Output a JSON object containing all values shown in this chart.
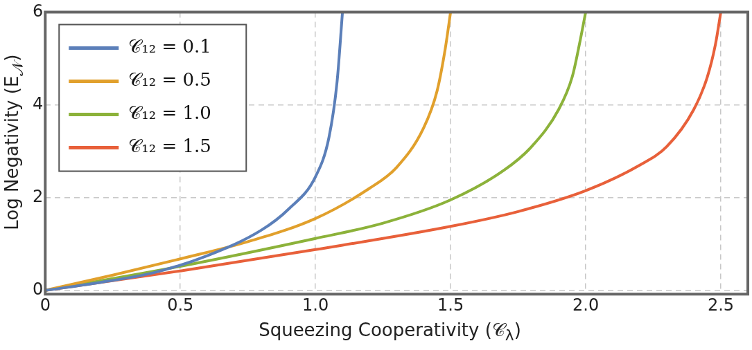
{
  "chart_data": {
    "type": "line",
    "xlabel": "Squeezing Cooperativity (𝒞$_{λ}$)",
    "ylabel": "Log Negativity (E$_{𝒩}$)",
    "xlim": [
      0,
      2.6
    ],
    "ylim": [
      -0.08,
      6
    ],
    "xticks": [
      0,
      0.5,
      {
        "value": 1,
        "label": "1.0"
      },
      1.5,
      {
        "value": 2,
        "label": "2.0"
      },
      2.5
    ],
    "yticks": [
      0,
      2,
      4,
      6
    ],
    "grid": true,
    "legend": "top left",
    "marker": "none",
    "line_style": "solid",
    "series": [
      {
        "name": "𝒞₁₂ = 0.1",
        "color": "#5b7fb9",
        "x": [
          0,
          0.2,
          0.4,
          0.6,
          0.8,
          0.9,
          1.0,
          1.05,
          1.08,
          1.1
        ],
        "values": [
          0,
          0.17,
          0.38,
          0.75,
          1.3,
          1.75,
          2.45,
          3.3,
          4.5,
          6
        ]
      },
      {
        "name": "𝒞₁₂ = 0.5",
        "color": "#e1a02c",
        "x": [
          0,
          0.25,
          0.5,
          0.75,
          1.0,
          1.2,
          1.3,
          1.4,
          1.45,
          1.48,
          1.5
        ],
        "values": [
          0,
          0.33,
          0.68,
          1.05,
          1.55,
          2.2,
          2.65,
          3.5,
          4.3,
          5.2,
          6
        ]
      },
      {
        "name": "𝒞₁₂ = 1.0",
        "color": "#8cb23a",
        "x": [
          0,
          0.5,
          1.0,
          1.25,
          1.5,
          1.7,
          1.8,
          1.9,
          1.95,
          1.98,
          2.0
        ],
        "values": [
          0,
          0.52,
          1.12,
          1.45,
          1.95,
          2.6,
          3.1,
          3.9,
          4.6,
          5.4,
          6
        ]
      },
      {
        "name": "𝒞₁₂ = 1.5",
        "color": "#e8603a",
        "x": [
          0,
          0.5,
          1.0,
          1.5,
          1.75,
          2.0,
          2.2,
          2.3,
          2.4,
          2.45,
          2.48,
          2.5
        ],
        "values": [
          0,
          0.42,
          0.88,
          1.38,
          1.7,
          2.15,
          2.7,
          3.1,
          3.9,
          4.6,
          5.3,
          6
        ]
      }
    ]
  }
}
